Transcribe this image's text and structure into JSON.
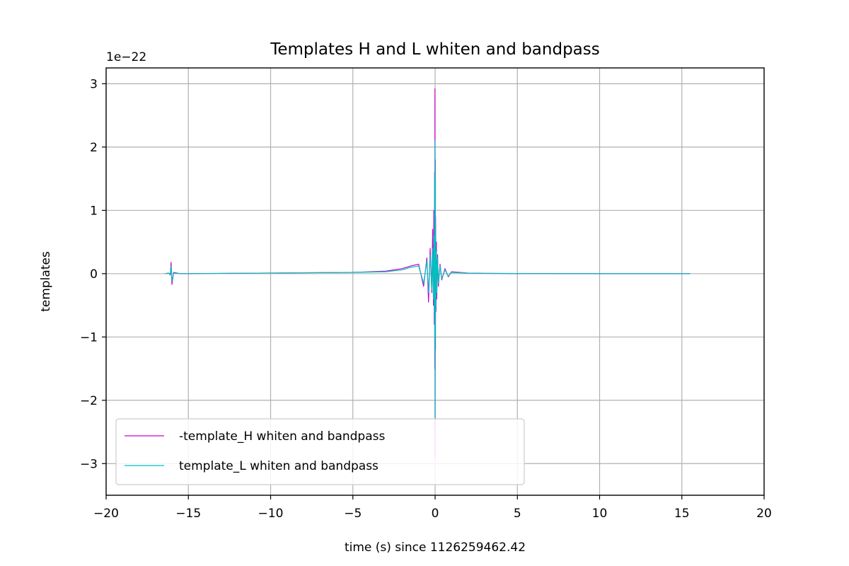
{
  "chart_data": {
    "type": "line",
    "title": "Templates H and L whiten and bandpass",
    "xlabel": "time (s) since 1126259462.42",
    "ylabel": "templates",
    "y_offset_label": "1e−22",
    "xlim": [
      -20,
      20
    ],
    "ylim": [
      -3.5,
      3.25
    ],
    "x_ticks": [
      -20,
      -15,
      -10,
      -5,
      0,
      5,
      10,
      15,
      20
    ],
    "x_tick_labels": [
      "−20",
      "−15",
      "−10",
      "−5",
      "0",
      "5",
      "10",
      "15",
      "20"
    ],
    "y_ticks": [
      -3,
      -2,
      -1,
      0,
      1,
      2,
      3
    ],
    "y_tick_labels": [
      "−3",
      "−2",
      "−1",
      "0",
      "1",
      "2",
      "3"
    ],
    "grid": true,
    "legend_position": "lower-left",
    "series": [
      {
        "name": "-template_H whiten and bandpass",
        "color": "#cc00cc",
        "x": [
          -16.4,
          -16.2,
          -16.1,
          -16.05,
          -16.0,
          -15.9,
          -15.5,
          -10,
          -5,
          -3,
          -2,
          -1.5,
          -1.0,
          -0.7,
          -0.5,
          -0.4,
          -0.3,
          -0.2,
          -0.15,
          -0.1,
          -0.08,
          -0.05,
          -0.03,
          -0.02,
          -0.01,
          0.0,
          0.01,
          0.02,
          0.03,
          0.05,
          0.08,
          0.1,
          0.15,
          0.2,
          0.3,
          0.4,
          0.6,
          0.8,
          1.0,
          1.5,
          2.0,
          3.0,
          5.0,
          10.0,
          15.5
        ],
        "y": [
          0.0,
          0.01,
          -0.02,
          0.18,
          -0.17,
          0.02,
          0.0,
          0.01,
          0.02,
          0.04,
          0.08,
          0.12,
          0.15,
          -0.2,
          0.25,
          -0.45,
          0.4,
          -0.3,
          0.7,
          -0.5,
          1.0,
          -0.8,
          1.6,
          -1.5,
          2.92,
          -2.9,
          1.8,
          -1.2,
          0.9,
          -0.6,
          0.5,
          -0.4,
          0.3,
          -0.2,
          0.15,
          -0.1,
          0.08,
          -0.05,
          0.03,
          0.02,
          0.01,
          0.005,
          0.002,
          0.001,
          0.0
        ]
      },
      {
        "name": "template_L whiten and bandpass",
        "color": "#00bfbf",
        "x": [
          -16.4,
          -16.2,
          -16.1,
          -16.05,
          -16.0,
          -15.9,
          -15.5,
          -10,
          -5,
          -3,
          -2,
          -1.5,
          -1.0,
          -0.7,
          -0.5,
          -0.4,
          -0.3,
          -0.2,
          -0.15,
          -0.1,
          -0.08,
          -0.05,
          -0.03,
          -0.02,
          -0.01,
          0.0,
          0.01,
          0.02,
          0.03,
          0.05,
          0.08,
          0.1,
          0.15,
          0.2,
          0.3,
          0.4,
          0.6,
          0.8,
          1.0,
          1.5,
          2.0,
          3.0,
          5.0,
          10.0,
          15.5
        ],
        "y": [
          0.0,
          0.01,
          -0.01,
          0.12,
          -0.12,
          0.01,
          0.0,
          0.01,
          0.02,
          0.03,
          0.06,
          0.1,
          0.12,
          -0.15,
          0.2,
          -0.3,
          0.3,
          -0.25,
          0.4,
          -0.4,
          0.6,
          -0.6,
          1.5,
          -1.2,
          2.1,
          -2.3,
          1.6,
          -1.0,
          0.7,
          -0.5,
          0.35,
          -0.3,
          0.25,
          -0.15,
          0.12,
          -0.08,
          0.06,
          -0.04,
          0.02,
          0.015,
          0.008,
          0.004,
          0.002,
          0.001,
          0.0
        ]
      }
    ]
  }
}
